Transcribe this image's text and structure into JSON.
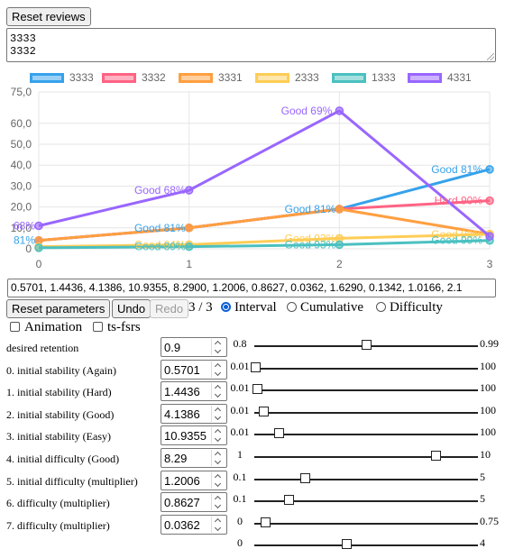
{
  "reset_reviews_label": "Reset reviews",
  "reviews_text": "3333\n3332",
  "legend": [
    {
      "label": "3333",
      "color": "#36a2eb"
    },
    {
      "label": "3332",
      "color": "#ff6384"
    },
    {
      "label": "3331",
      "color": "#ff9f40"
    },
    {
      "label": "2333",
      "color": "#ffcd56"
    },
    {
      "label": "1333",
      "color": "#4bc0c0"
    },
    {
      "label": "4331",
      "color": "#9966ff"
    }
  ],
  "chart_data": {
    "type": "line",
    "x": [
      0,
      1,
      2,
      3
    ],
    "ylim": [
      0,
      75
    ],
    "yticks": [
      "75,0",
      "60,0",
      "50,0",
      "40,0",
      "30,0",
      "20,0",
      "10,0",
      "0"
    ],
    "ytick_values": [
      75,
      60,
      50,
      40,
      30,
      20,
      10,
      0
    ],
    "xticks": [
      "0",
      "1",
      "2",
      "3"
    ],
    "series": [
      {
        "name": "3333",
        "color": "#36a2eb",
        "values": [
          4,
          10,
          19,
          38
        ],
        "labels": [
          "81%",
          "Good 81%",
          "Good 81%",
          "Good 81%"
        ]
      },
      {
        "name": "3332",
        "color": "#ff6384",
        "values": [
          4,
          10,
          19,
          23
        ],
        "labels": [
          "",
          "",
          "",
          "Hard 90%"
        ]
      },
      {
        "name": "3331",
        "color": "#ff9f40",
        "values": [
          4,
          10,
          19,
          7
        ],
        "labels": [
          "",
          "",
          "",
          ""
        ]
      },
      {
        "name": "2333",
        "color": "#ffcd56",
        "values": [
          1,
          2,
          5,
          7
        ],
        "labels": [
          "",
          "Good 84%",
          "Good 93%",
          "Good 98%"
        ]
      },
      {
        "name": "1333",
        "color": "#4bc0c0",
        "values": [
          0.5,
          1,
          2,
          4
        ],
        "labels": [
          "",
          "Good 89%",
          "Good 93%",
          "Good 99%"
        ]
      },
      {
        "name": "4331",
        "color": "#9966ff",
        "values": [
          11,
          28,
          66,
          6
        ],
        "labels": [
          "68%",
          "Good 68%",
          "Good 69%",
          ""
        ]
      }
    ]
  },
  "params_text": "0.5701, 1.4436, 4.1386, 10.9355, 8.2900, 1.2006, 0.8627, 0.0362, 1.6290, 0.1342, 1.0166, 2.1",
  "controls": {
    "reset_params_label": "Reset parameters",
    "undo_label": "Undo",
    "redo_label": "Redo",
    "counter": "3 / 3",
    "radio_interval": "Interval",
    "radio_cumulative": "Cumulative",
    "radio_difficulty": "Difficulty",
    "animation_label": "Animation",
    "tsfsrs_label": "ts-fsrs"
  },
  "rows": [
    {
      "name": "desired retention",
      "value": "0.9",
      "min": "0.8",
      "max": "0.99",
      "frac": 0.5
    },
    {
      "name": "0. initial stability (Again)",
      "value": "0.5701",
      "min": "0.01",
      "max": "100",
      "frac": 0.005
    },
    {
      "name": "1. initial stability (Hard)",
      "value": "1.4436",
      "min": "0.01",
      "max": "100",
      "frac": 0.014
    },
    {
      "name": "2. initial stability (Good)",
      "value": "4.1386",
      "min": "0.01",
      "max": "100",
      "frac": 0.041
    },
    {
      "name": "3. initial stability (Easy)",
      "value": "10.9355",
      "min": "0.01",
      "max": "100",
      "frac": 0.109
    },
    {
      "name": "4. initial difficulty (Good)",
      "value": "8.29",
      "min": "1",
      "max": "10",
      "frac": 0.81
    },
    {
      "name": "5. initial difficulty (multiplier)",
      "value": "1.2006",
      "min": "0.1",
      "max": "5",
      "frac": 0.224
    },
    {
      "name": "6. difficulty (multiplier)",
      "value": "0.8627",
      "min": "0.1",
      "max": "5",
      "frac": 0.155
    },
    {
      "name": "7. difficulty (multiplier)",
      "value": "0.0362",
      "min": "0",
      "max": "0.75",
      "frac": 0.048
    },
    {
      "name": "",
      "value": "",
      "min": "0",
      "max": "4",
      "frac": 0.41
    }
  ]
}
